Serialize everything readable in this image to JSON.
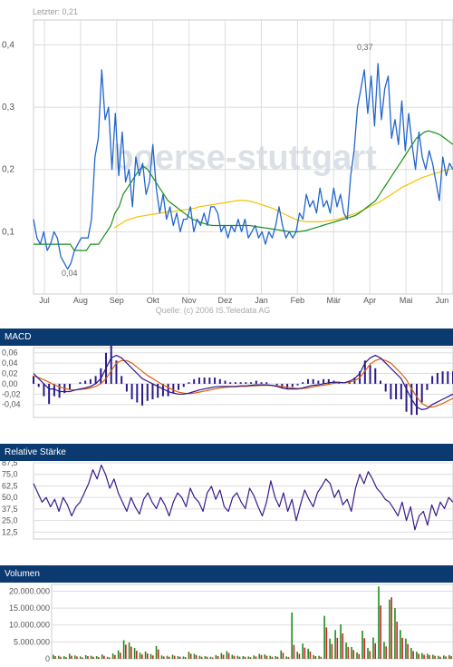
{
  "colors": {
    "price": "#2266cc",
    "sma_long": "#f2c200",
    "sma_short": "#1a8f1a",
    "macd": "#2b1a8a",
    "signal": "#e06010",
    "rsi": "#3a1a8a",
    "vol_up": "#1a8f1a",
    "vol_down": "#cc2222",
    "grid": "#dddddd",
    "axis": "#888888",
    "header_bg": "#0b3a70",
    "watermark": "#cfd5dd"
  },
  "main": {
    "last_label": "Letzter: 0,21",
    "watermark": "boerse-stuttgart",
    "source": "Quelle: (c) 2006 IS.Teledata AG",
    "annot_max": "0,37",
    "annot_min": "0,04"
  },
  "chart_data": [
    {
      "type": "line",
      "ylim": [
        0,
        0.44
      ],
      "y_ticks": [
        "0,4",
        "0,3",
        "0,2",
        "0,1"
      ],
      "y_tick_values": [
        0.4,
        0.3,
        0.2,
        0.1
      ],
      "x_ticks": [
        "Jul",
        "Aug",
        "Sep",
        "Okt",
        "Nov",
        "Dez",
        "Jan",
        "Feb",
        "Mär",
        "Apr",
        "Mai",
        "Jun"
      ],
      "series": [
        {
          "key": "price",
          "values": [
            0.12,
            0.09,
            0.08,
            0.1,
            0.07,
            0.08,
            0.1,
            0.09,
            0.06,
            0.05,
            0.04,
            0.05,
            0.07,
            0.08,
            0.09,
            0.09,
            0.09,
            0.12,
            0.22,
            0.25,
            0.36,
            0.28,
            0.3,
            0.2,
            0.29,
            0.19,
            0.26,
            0.18,
            0.2,
            0.14,
            0.22,
            0.19,
            0.21,
            0.16,
            0.18,
            0.24,
            0.17,
            0.13,
            0.16,
            0.12,
            0.14,
            0.11,
            0.13,
            0.1,
            0.12,
            0.12,
            0.14,
            0.1,
            0.12,
            0.11,
            0.13,
            0.11,
            0.14,
            0.14,
            0.13,
            0.1,
            0.11,
            0.09,
            0.11,
            0.1,
            0.12,
            0.1,
            0.12,
            0.09,
            0.1,
            0.11,
            0.09,
            0.1,
            0.08,
            0.1,
            0.09,
            0.11,
            0.14,
            0.11,
            0.09,
            0.1,
            0.09,
            0.1,
            0.13,
            0.12,
            0.16,
            0.14,
            0.15,
            0.13,
            0.17,
            0.14,
            0.15,
            0.13,
            0.17,
            0.14,
            0.16,
            0.13,
            0.12,
            0.19,
            0.23,
            0.3,
            0.33,
            0.36,
            0.29,
            0.35,
            0.27,
            0.37,
            0.28,
            0.33,
            0.35,
            0.25,
            0.28,
            0.24,
            0.31,
            0.23,
            0.29,
            0.24,
            0.2,
            0.26,
            0.22,
            0.2,
            0.23,
            0.21,
            0.18,
            0.15,
            0.22,
            0.19,
            0.21,
            0.2
          ]
        },
        {
          "key": "sma_long",
          "values": [
            null,
            null,
            null,
            null,
            null,
            null,
            null,
            null,
            null,
            null,
            null,
            null,
            null,
            null,
            null,
            null,
            null,
            null,
            null,
            null,
            null,
            0.106,
            0.11,
            0.114,
            0.118,
            0.12,
            0.122,
            0.124,
            0.125,
            0.126,
            0.127,
            0.128,
            0.129,
            0.13,
            0.131,
            0.132,
            0.132,
            0.133,
            0.134,
            0.135,
            0.136,
            0.137,
            0.138,
            0.14,
            0.141,
            0.142,
            0.143,
            0.144,
            0.145,
            0.146,
            0.147,
            0.148,
            0.149,
            0.15,
            0.15,
            0.15,
            0.149,
            0.148,
            0.146,
            0.144,
            0.142,
            0.14,
            0.138,
            0.135,
            0.132,
            0.129,
            0.126,
            0.123,
            0.12,
            0.118,
            0.117,
            0.116,
            0.116,
            0.116,
            0.116,
            0.116,
            0.117,
            0.118,
            0.119,
            0.12,
            0.122,
            0.124,
            0.126,
            0.128,
            0.13,
            0.133,
            0.136,
            0.139,
            0.142,
            0.145,
            0.148,
            0.152,
            0.156,
            0.16,
            0.164,
            0.168,
            0.172,
            0.175,
            0.178,
            0.181,
            0.184,
            0.187,
            0.189,
            0.191,
            0.193,
            0.195,
            0.197,
            0.199,
            0.2,
            0.201
          ]
        },
        {
          "key": "sma_short",
          "values": [
            0.08,
            0.08,
            0.08,
            0.08,
            0.08,
            0.08,
            0.08,
            0.08,
            0.08,
            0.08,
            0.07,
            0.07,
            0.07,
            0.07,
            0.08,
            0.08,
            0.08,
            0.09,
            0.1,
            0.11,
            0.13,
            0.14,
            0.16,
            0.17,
            0.18,
            0.19,
            0.2,
            0.205,
            0.2,
            0.19,
            0.18,
            0.17,
            0.16,
            0.15,
            0.145,
            0.14,
            0.135,
            0.13,
            0.125,
            0.12,
            0.118,
            0.115,
            0.113,
            0.111,
            0.11,
            0.11,
            0.11,
            0.11,
            0.11,
            0.11,
            0.11,
            0.11,
            0.11,
            0.11,
            0.109,
            0.108,
            0.107,
            0.106,
            0.105,
            0.104,
            0.103,
            0.102,
            0.101,
            0.1,
            0.1,
            0.1,
            0.101,
            0.102,
            0.104,
            0.106,
            0.108,
            0.11,
            0.112,
            0.114,
            0.116,
            0.118,
            0.12,
            0.122,
            0.124,
            0.126,
            0.13,
            0.135,
            0.14,
            0.145,
            0.15,
            0.16,
            0.17,
            0.18,
            0.19,
            0.2,
            0.21,
            0.22,
            0.23,
            0.24,
            0.25,
            0.255,
            0.26,
            0.262,
            0.26,
            0.258,
            0.255,
            0.25,
            0.245,
            0.24
          ]
        }
      ]
    },
    {
      "type": "line",
      "title": "MACD",
      "ylim": [
        -0.065,
        0.07
      ],
      "y_ticks": [
        "0,06",
        "0,04",
        "0,02",
        "0,00",
        "-0,02",
        "-0,04"
      ],
      "y_tick_values": [
        0.06,
        0.04,
        0.02,
        0.0,
        -0.02,
        -0.04
      ],
      "series": [
        {
          "key": "macd",
          "values": [
            0.02,
            0.01,
            0.0,
            -0.01,
            -0.01,
            -0.015,
            -0.015,
            -0.015,
            -0.012,
            -0.01,
            -0.008,
            -0.005,
            0.0,
            0.01,
            0.03,
            0.05,
            0.055,
            0.05,
            0.04,
            0.03,
            0.02,
            0.01,
            0.005,
            0.0,
            -0.005,
            -0.01,
            -0.015,
            -0.018,
            -0.02,
            -0.02,
            -0.018,
            -0.015,
            -0.012,
            -0.01,
            -0.008,
            -0.006,
            -0.005,
            -0.005,
            -0.005,
            -0.005,
            -0.004,
            -0.004,
            -0.003,
            -0.002,
            -0.002,
            -0.002,
            -0.003,
            -0.005,
            -0.008,
            -0.01,
            -0.01,
            -0.01,
            -0.008,
            -0.005,
            -0.003,
            -0.002,
            0.0,
            0.002,
            0.003,
            0.003,
            0.002,
            0.005,
            0.01,
            0.02,
            0.04,
            0.05,
            0.055,
            0.05,
            0.04,
            0.03,
            0.02,
            0.01,
            -0.01,
            -0.03,
            -0.045,
            -0.05,
            -0.048,
            -0.04,
            -0.035,
            -0.03,
            -0.025,
            -0.02
          ]
        },
        {
          "key": "signal",
          "values": [
            0.015,
            0.012,
            0.008,
            0.003,
            -0.002,
            -0.006,
            -0.009,
            -0.011,
            -0.012,
            -0.011,
            -0.01,
            -0.008,
            -0.005,
            0.0,
            0.01,
            0.025,
            0.04,
            0.045,
            0.045,
            0.04,
            0.032,
            0.024,
            0.016,
            0.01,
            0.004,
            -0.002,
            -0.007,
            -0.012,
            -0.016,
            -0.018,
            -0.019,
            -0.018,
            -0.016,
            -0.014,
            -0.012,
            -0.01,
            -0.008,
            -0.007,
            -0.006,
            -0.006,
            -0.005,
            -0.005,
            -0.004,
            -0.004,
            -0.003,
            -0.003,
            -0.003,
            -0.004,
            -0.005,
            -0.007,
            -0.008,
            -0.009,
            -0.009,
            -0.008,
            -0.006,
            -0.004,
            -0.003,
            -0.001,
            0.001,
            0.002,
            0.002,
            0.003,
            0.006,
            0.012,
            0.025,
            0.038,
            0.045,
            0.048,
            0.045,
            0.04,
            0.03,
            0.02,
            0.008,
            -0.01,
            -0.025,
            -0.038,
            -0.044,
            -0.045,
            -0.042,
            -0.038,
            -0.033,
            -0.028
          ]
        }
      ]
    },
    {
      "type": "line",
      "title": "Relative Stärke",
      "ylim": [
        5,
        87.5
      ],
      "y_ticks": [
        "87,5",
        "75,0",
        "62,5",
        "50,0",
        "37,5",
        "25,0",
        "12,5"
      ],
      "y_tick_values": [
        87.5,
        75.0,
        62.5,
        50.0,
        37.5,
        25.0,
        12.5
      ],
      "series": [
        {
          "key": "rsi",
          "values": [
            65,
            55,
            45,
            50,
            40,
            48,
            35,
            50,
            42,
            30,
            40,
            45,
            55,
            65,
            80,
            70,
            85,
            75,
            60,
            70,
            55,
            45,
            35,
            50,
            40,
            32,
            48,
            55,
            45,
            38,
            50,
            42,
            30,
            45,
            55,
            50,
            40,
            60,
            50,
            45,
            35,
            55,
            62,
            48,
            58,
            40,
            35,
            50,
            55,
            45,
            38,
            60,
            52,
            40,
            30,
            45,
            68,
            50,
            40,
            55,
            35,
            48,
            25,
            42,
            58,
            48,
            40,
            55,
            62,
            70,
            65,
            50,
            58,
            42,
            48,
            35,
            60,
            75,
            65,
            78,
            70,
            60,
            55,
            48,
            45,
            38,
            30,
            45,
            25,
            40,
            15,
            30,
            35,
            20,
            42,
            30,
            45,
            38,
            50,
            45
          ]
        }
      ]
    },
    {
      "type": "bar",
      "title": "Volumen",
      "ylim": [
        0,
        22000000
      ],
      "y_ticks": [
        "20.000.000",
        "15.000.000",
        "10.000.000",
        "5.000.000",
        "0"
      ],
      "y_tick_values": [
        20000000,
        15000000,
        10000000,
        5000000,
        0
      ],
      "series": [
        {
          "key": "vol_up",
          "values": [
            1200000,
            900000,
            800000,
            1500000,
            1000000,
            700000,
            1100000,
            900000,
            800000,
            1300000,
            600000,
            1600000,
            2500000,
            5500000,
            4800000,
            3200000,
            1800000,
            2200000,
            1400000,
            3800000,
            1000000,
            900000,
            1200000,
            800000,
            700000,
            2100000,
            1500000,
            900000,
            800000,
            600000,
            1100000,
            1700000,
            2300000,
            1200000,
            900000,
            800000,
            700000,
            1000000,
            1500000,
            1300000,
            900000,
            800000,
            2500000,
            700000,
            13700000,
            2100000,
            4500000,
            3000000,
            1100000,
            900000,
            12700000,
            6000000,
            8500000,
            10200000,
            4800000,
            3500000,
            1900000,
            8300000,
            3200000,
            6300000,
            21400000,
            5000000,
            17500000,
            15000000,
            8500000,
            6000000,
            3200000,
            2100000,
            1700000,
            1500000,
            1200000,
            900000,
            1000000,
            1100000
          ]
        },
        {
          "key": "vol_down",
          "values": [
            800000,
            600000,
            500000,
            900000,
            700000,
            400000,
            800000,
            600000,
            500000,
            900000,
            400000,
            1100000,
            1800000,
            4200000,
            3600000,
            2400000,
            1300000,
            1600000,
            1000000,
            2800000,
            700000,
            600000,
            900000,
            600000,
            500000,
            1500000,
            1100000,
            600000,
            600000,
            400000,
            800000,
            1200000,
            1700000,
            900000,
            600000,
            600000,
            500000,
            700000,
            1100000,
            900000,
            600000,
            600000,
            1800000,
            500000,
            4100000,
            1500000,
            3300000,
            2200000,
            800000,
            600000,
            9300000,
            4400000,
            6200000,
            7500000,
            3500000,
            2600000,
            1400000,
            6100000,
            2300000,
            4600000,
            15800000,
            3700000,
            18200000,
            11000000,
            6200000,
            4400000,
            2300000,
            1500000,
            1200000,
            1100000,
            900000,
            600000,
            700000,
            800000
          ]
        }
      ]
    }
  ]
}
